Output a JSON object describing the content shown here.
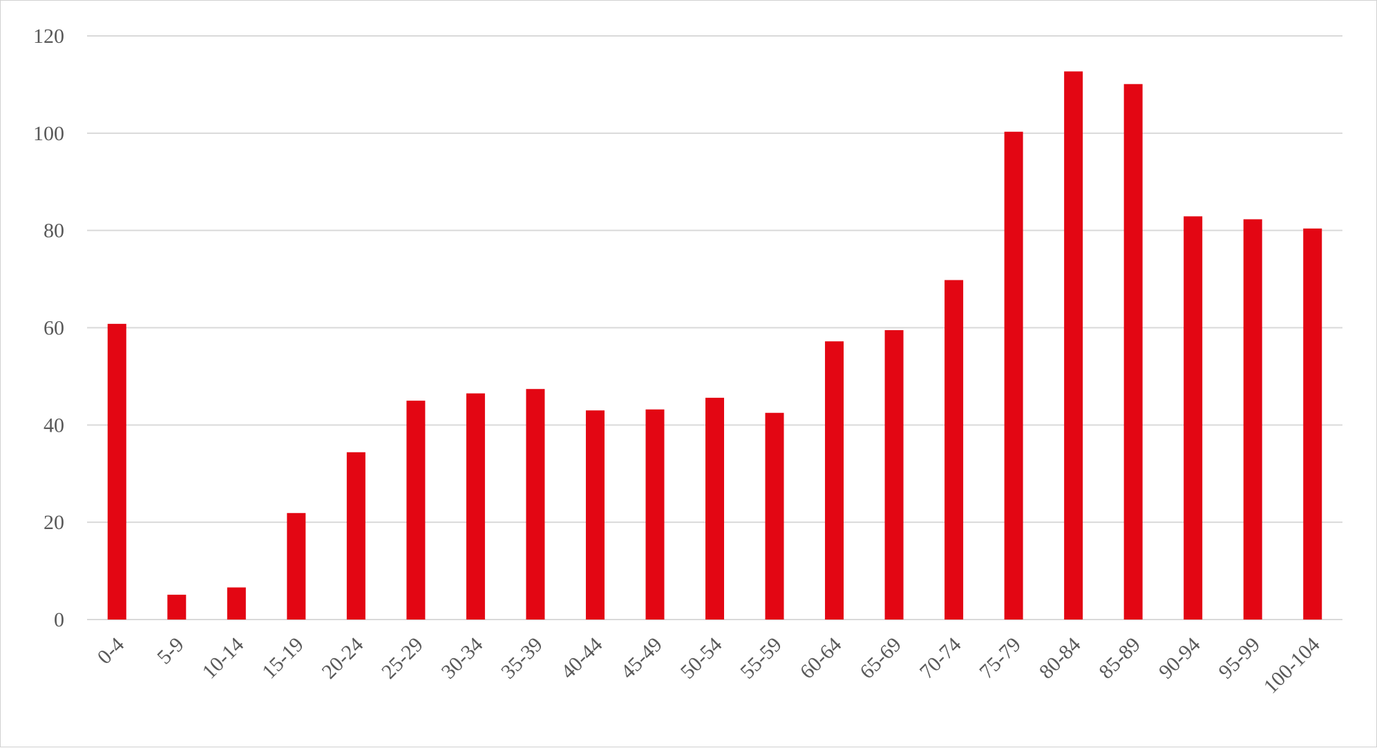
{
  "chart_data": {
    "type": "bar",
    "title": "",
    "xlabel": "",
    "ylabel": "",
    "categories": [
      "0-4",
      "5-9",
      "10-14",
      "15-19",
      "20-24",
      "25-29",
      "30-34",
      "35-39",
      "40-44",
      "45-49",
      "50-54",
      "55-59",
      "60-64",
      "65-69",
      "70-74",
      "75-79",
      "80-84",
      "85-89",
      "90-94",
      "95-99",
      "100-104"
    ],
    "values": [
      60.8,
      5.1,
      6.6,
      21.9,
      34.4,
      45.0,
      46.5,
      47.4,
      43.0,
      43.2,
      45.6,
      42.5,
      57.2,
      59.5,
      69.8,
      100.3,
      112.7,
      110.1,
      82.9,
      82.3,
      80.4
    ],
    "ylim": [
      0,
      120
    ],
    "yticks": [
      0,
      20,
      40,
      60,
      80,
      100,
      120
    ],
    "grid": true,
    "legend": "none",
    "bar_color": "#e30613"
  }
}
